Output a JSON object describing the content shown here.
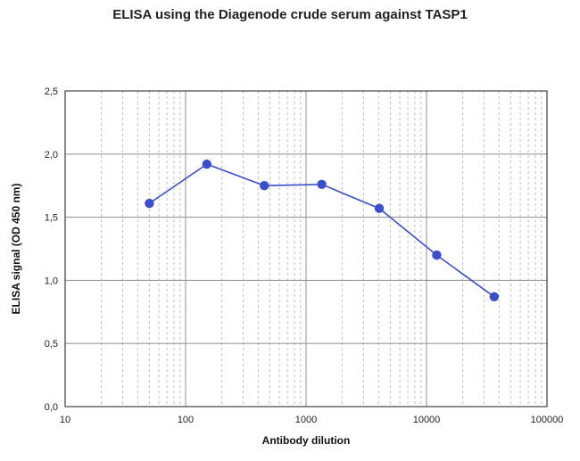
{
  "chart_data": {
    "type": "line",
    "title": "ELISA using the Diagenode crude serum against TASP1",
    "xlabel": "Antibody dilution",
    "ylabel": "ELISA signal (OD 450 nm)",
    "x_scale": "log",
    "xlim": [
      10,
      100000
    ],
    "ylim": [
      0,
      2.5
    ],
    "x_ticks": [
      "10",
      "100",
      "1000",
      "10000",
      "100000"
    ],
    "y_ticks": [
      "0,0",
      "0,5",
      "1,0",
      "1,5",
      "2,0",
      "2,5"
    ],
    "grid": true,
    "legend": "none",
    "series": [
      {
        "color": "#3a4fd0",
        "x": [
          50,
          150,
          450,
          1350,
          4050,
          12150,
          36450
        ],
        "y": [
          1.61,
          1.92,
          1.75,
          1.76,
          1.57,
          1.2,
          0.87
        ]
      }
    ]
  }
}
